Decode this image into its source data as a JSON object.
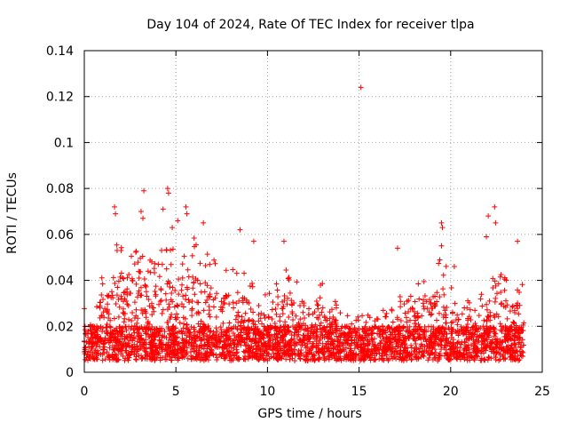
{
  "chart_data": {
    "type": "scatter",
    "title": "Day 104 of 2024, Rate Of TEC Index for receiver tlpa",
    "xlabel": "GPS time / hours",
    "ylabel": "ROTI / TECUs",
    "xlim": [
      0,
      25
    ],
    "ylim": [
      0,
      0.14
    ],
    "xticks": [
      0,
      5,
      10,
      15,
      20,
      25
    ],
    "xtick_labels": [
      "0",
      "5",
      "10",
      "15",
      "20",
      "25"
    ],
    "yticks": [
      0,
      0.02,
      0.04,
      0.06,
      0.08,
      0.1,
      0.12,
      0.14
    ],
    "ytick_labels": [
      "0",
      "0.02",
      "0.04",
      "0.06",
      "0.08",
      "0.1",
      "0.12",
      "0.14"
    ],
    "grid": true,
    "marker": "+",
    "series_color": "#ff0000",
    "data_range": [
      0,
      24
    ],
    "typical_band": [
      0.005,
      0.025
    ],
    "envelope": [
      {
        "x": 0.5,
        "y": 0.028
      },
      {
        "x": 1.0,
        "y": 0.045
      },
      {
        "x": 1.5,
        "y": 0.055
      },
      {
        "x": 2.0,
        "y": 0.062
      },
      {
        "x": 3.0,
        "y": 0.055
      },
      {
        "x": 3.5,
        "y": 0.048
      },
      {
        "x": 4.5,
        "y": 0.058
      },
      {
        "x": 5.0,
        "y": 0.052
      },
      {
        "x": 6.0,
        "y": 0.06
      },
      {
        "x": 6.5,
        "y": 0.055
      },
      {
        "x": 7.5,
        "y": 0.045
      },
      {
        "x": 8.5,
        "y": 0.048
      },
      {
        "x": 9.5,
        "y": 0.035
      },
      {
        "x": 10.5,
        "y": 0.04
      },
      {
        "x": 11.0,
        "y": 0.05
      },
      {
        "x": 12.0,
        "y": 0.032
      },
      {
        "x": 12.8,
        "y": 0.04
      },
      {
        "x": 13.5,
        "y": 0.035
      },
      {
        "x": 14.5,
        "y": 0.025
      },
      {
        "x": 15.5,
        "y": 0.025
      },
      {
        "x": 16.5,
        "y": 0.028
      },
      {
        "x": 17.5,
        "y": 0.035
      },
      {
        "x": 18.5,
        "y": 0.042
      },
      {
        "x": 19.5,
        "y": 0.05
      },
      {
        "x": 20.5,
        "y": 0.035
      },
      {
        "x": 21.5,
        "y": 0.032
      },
      {
        "x": 22.5,
        "y": 0.048
      },
      {
        "x": 23.5,
        "y": 0.04
      }
    ],
    "highlight_points": [
      {
        "x": 1.65,
        "y": 0.072
      },
      {
        "x": 1.7,
        "y": 0.069
      },
      {
        "x": 3.25,
        "y": 0.079
      },
      {
        "x": 3.1,
        "y": 0.07
      },
      {
        "x": 3.2,
        "y": 0.067
      },
      {
        "x": 4.55,
        "y": 0.08
      },
      {
        "x": 4.6,
        "y": 0.078
      },
      {
        "x": 4.3,
        "y": 0.071
      },
      {
        "x": 5.55,
        "y": 0.072
      },
      {
        "x": 5.6,
        "y": 0.069
      },
      {
        "x": 5.1,
        "y": 0.066
      },
      {
        "x": 6.5,
        "y": 0.065
      },
      {
        "x": 4.8,
        "y": 0.063
      },
      {
        "x": 8.5,
        "y": 0.062
      },
      {
        "x": 9.25,
        "y": 0.057
      },
      {
        "x": 10.9,
        "y": 0.057
      },
      {
        "x": 15.1,
        "y": 0.124
      },
      {
        "x": 17.1,
        "y": 0.054
      },
      {
        "x": 19.5,
        "y": 0.065
      },
      {
        "x": 19.55,
        "y": 0.063
      },
      {
        "x": 19.5,
        "y": 0.055
      },
      {
        "x": 22.05,
        "y": 0.068
      },
      {
        "x": 22.4,
        "y": 0.072
      },
      {
        "x": 22.45,
        "y": 0.065
      },
      {
        "x": 21.95,
        "y": 0.059
      },
      {
        "x": 23.65,
        "y": 0.057
      },
      {
        "x": 20.2,
        "y": 0.046
      }
    ]
  }
}
